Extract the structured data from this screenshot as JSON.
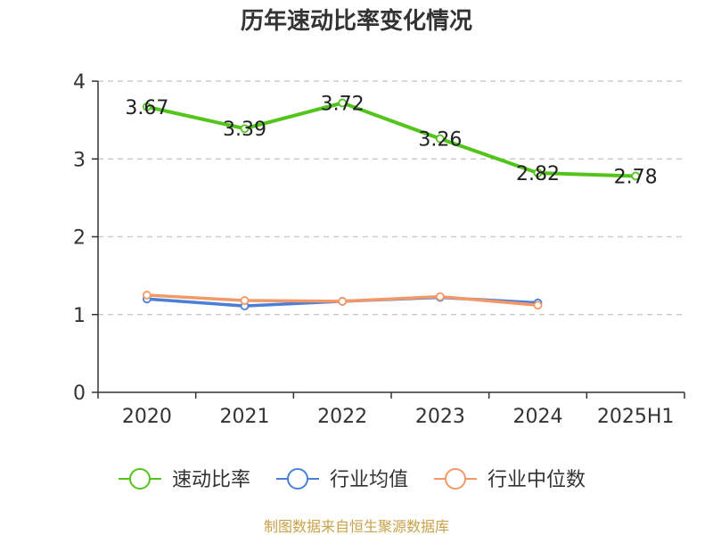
{
  "chart_data": {
    "type": "line",
    "title": "历年速动比率变化情况",
    "categories": [
      "2020",
      "2021",
      "2022",
      "2023",
      "2024",
      "2025H1"
    ],
    "yticks": [
      "0",
      "1",
      "2",
      "3",
      "4"
    ],
    "ylim": [
      0,
      4
    ],
    "grid": true,
    "legend_position": "bottom",
    "series": [
      {
        "name": "速动比率",
        "color": "#52c41a",
        "values": [
          3.67,
          3.39,
          3.72,
          3.26,
          2.82,
          2.78
        ],
        "labels": [
          "3.67",
          "3.39",
          "3.72",
          "3.26",
          "2.82",
          "2.78"
        ]
      },
      {
        "name": "行业均值",
        "color": "#4a7fd8",
        "values": [
          1.2,
          1.11,
          1.17,
          1.22,
          1.15,
          null
        ]
      },
      {
        "name": "行业中位数",
        "color": "#f39867",
        "values": [
          1.25,
          1.18,
          1.17,
          1.23,
          1.12,
          null
        ]
      }
    ],
    "source": "制图数据来自恒生聚源数据库",
    "source_color": "#c8a24a",
    "axis_color": "#333333",
    "grid_color": "#cccccc"
  }
}
